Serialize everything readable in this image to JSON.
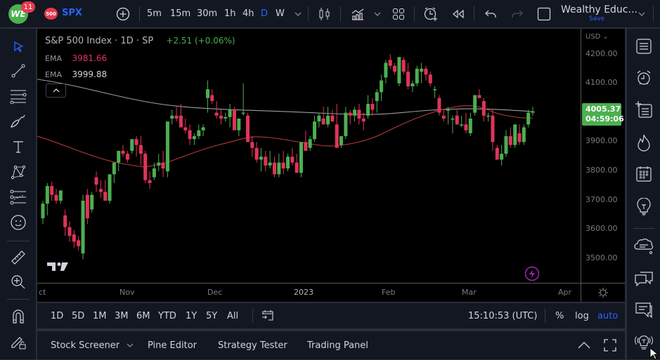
{
  "topbar": {
    "logo_text": "WE",
    "notification_count": "11",
    "symbol_badge": "500",
    "symbol": "SPX",
    "intervals": [
      "5m",
      "15m",
      "30m",
      "1h",
      "4h",
      "D",
      "W"
    ],
    "active_interval": "D",
    "layout_name": "Wealthy Educ...",
    "layout_save": "Save"
  },
  "legend": {
    "title": "S&P 500 Index · 1D · SP",
    "change": "+2.51 (+0.06%)",
    "ema1_label": "EMA",
    "ema1_value": "3981.66",
    "ema2_label": "EMA",
    "ema2_value": "3999.88"
  },
  "price_axis": {
    "currency": "USD",
    "labels": [
      "4200.00",
      "4100.00",
      "3900.00",
      "3800.00",
      "3700.00",
      "3600.00",
      "3500.00"
    ],
    "current_price": "4005.37",
    "countdown": "04:59:06"
  },
  "time_axis": {
    "labels": [
      "ct",
      "Nov",
      "Dec",
      "2023",
      "Feb",
      "Mar",
      "Apr"
    ]
  },
  "bottom_toolbar": {
    "ranges": [
      "1D",
      "5D",
      "1M",
      "3M",
      "6M",
      "YTD",
      "1Y",
      "5Y",
      "All"
    ],
    "clock": "15:10:53 (UTC)",
    "percent": "%",
    "log": "log",
    "auto": "auto"
  },
  "panel_tabs": {
    "stock_screener": "Stock Screener",
    "pine_editor": "Pine Editor",
    "strategy_tester": "Strategy Tester",
    "trading_panel": "Trading Panel"
  },
  "colors": {
    "up": "#4caf50",
    "down": "#e0345a",
    "ema_fast": "#b33a3a",
    "ema_slow": "#9e9e9e",
    "accent": "#2962ff"
  },
  "chart_data": {
    "type": "candlestick",
    "title": "S&P 500 Index · 1D · SP",
    "ylim": [
      3430,
      4250
    ],
    "y_ticks": [
      3500,
      3600,
      3700,
      3800,
      3900,
      4000,
      4100,
      4200
    ],
    "x_ticks": [
      "Nov",
      "Dec",
      "2023",
      "Feb",
      "Mar",
      "Apr"
    ],
    "candles": [
      [
        3640,
        3700,
        3620,
        3690
      ],
      [
        3690,
        3760,
        3650,
        3750
      ],
      [
        3750,
        3765,
        3700,
        3720
      ],
      [
        3720,
        3740,
        3690,
        3700
      ],
      [
        3700,
        3730,
        3690,
        3735
      ],
      [
        3650,
        3670,
        3580,
        3610
      ],
      [
        3610,
        3630,
        3560,
        3580
      ],
      [
        3585,
        3600,
        3540,
        3560
      ],
      [
        3565,
        3580,
        3530,
        3545
      ],
      [
        3520,
        3720,
        3500,
        3700
      ],
      [
        3720,
        3740,
        3620,
        3640
      ],
      [
        3670,
        3730,
        3660,
        3720
      ],
      [
        3780,
        3800,
        3730,
        3755
      ],
      [
        3740,
        3770,
        3710,
        3730
      ],
      [
        3730,
        3770,
        3710,
        3700
      ],
      [
        3700,
        3780,
        3690,
        3790
      ],
      [
        3790,
        3830,
        3760,
        3830
      ],
      [
        3830,
        3870,
        3800,
        3870
      ],
      [
        3870,
        3890,
        3850,
        3860
      ],
      [
        3860,
        3870,
        3830,
        3840
      ],
      [
        3870,
        3900,
        3860,
        3910
      ],
      [
        3910,
        3920,
        3850,
        3890
      ],
      [
        3890,
        3920,
        3820,
        3860
      ],
      [
        3860,
        3870,
        3760,
        3770
      ],
      [
        3770,
        3800,
        3740,
        3760
      ],
      [
        3780,
        3830,
        3770,
        3810
      ],
      [
        3820,
        3860,
        3800,
        3830
      ],
      [
        3830,
        3870,
        3780,
        3810
      ],
      [
        3800,
        3880,
        3780,
        3970
      ],
      [
        3980,
        4010,
        3960,
        3990
      ],
      [
        3990,
        4020,
        3970,
        3980
      ],
      [
        3990,
        4030,
        3970,
        3950
      ],
      [
        3950,
        3980,
        3930,
        3940
      ],
      [
        3940,
        3960,
        3890,
        3910
      ],
      [
        3910,
        3930,
        3890,
        3920
      ],
      [
        3920,
        3960,
        3910,
        3940
      ],
      [
        3940,
        3960,
        3920,
        3950
      ],
      [
        4050,
        4110,
        4000,
        4080
      ],
      [
        4060,
        4080,
        4030,
        4040
      ],
      [
        4000,
        4040,
        3980,
        3990
      ],
      [
        3990,
        4010,
        3960,
        3980
      ],
      [
        3980,
        4000,
        3970,
        3985
      ],
      [
        3985,
        4030,
        3950,
        4010
      ],
      [
        4010,
        4020,
        3950,
        3940
      ],
      [
        3940,
        3960,
        3920,
        3980
      ],
      [
        4000,
        4100,
        3990,
        4000
      ],
      [
        3990,
        4000,
        3900,
        3900
      ],
      [
        3900,
        3920,
        3850,
        3880
      ],
      [
        3880,
        3900,
        3830,
        3840
      ],
      [
        3840,
        3880,
        3800,
        3850
      ],
      [
        3850,
        3870,
        3800,
        3820
      ],
      [
        3820,
        3870,
        3810,
        3830
      ],
      [
        3830,
        3850,
        3780,
        3790
      ],
      [
        3790,
        3860,
        3780,
        3830
      ],
      [
        3830,
        3870,
        3790,
        3810
      ],
      [
        3810,
        3860,
        3800,
        3850
      ],
      [
        3850,
        3880,
        3820,
        3830
      ],
      [
        3830,
        3860,
        3800,
        3795
      ],
      [
        3795,
        3900,
        3780,
        3900
      ],
      [
        3900,
        3940,
        3880,
        3870
      ],
      [
        3880,
        3920,
        3870,
        3910
      ],
      [
        3910,
        3990,
        3900,
        3970
      ],
      [
        3970,
        4000,
        3950,
        3990
      ],
      [
        3980,
        4020,
        3960,
        3960
      ],
      [
        3960,
        4020,
        3950,
        3990
      ],
      [
        3990,
        4010,
        3970,
        3970
      ],
      [
        3960,
        4030,
        3950,
        3880
      ],
      [
        3890,
        3910,
        3880,
        3920
      ],
      [
        3920,
        4020,
        3910,
        4000
      ],
      [
        4000,
        4010,
        3960,
        3990
      ],
      [
        3990,
        4020,
        3970,
        4010
      ],
      [
        4010,
        4030,
        3960,
        3980
      ],
      [
        3980,
        4000,
        3940,
        3970
      ],
      [
        3990,
        4060,
        3980,
        4030
      ],
      [
        4030,
        4050,
        3990,
        4010
      ],
      [
        4040,
        4080,
        4000,
        4070
      ],
      [
        4070,
        4130,
        4040,
        4110
      ],
      [
        4120,
        4180,
        4100,
        4170
      ],
      [
        4180,
        4200,
        4150,
        4160
      ],
      [
        4160,
        4170,
        4130,
        4140
      ],
      [
        4100,
        4180,
        4090,
        4190
      ],
      [
        4180,
        4190,
        4130,
        4140
      ],
      [
        4140,
        4170,
        4080,
        4090
      ],
      [
        4090,
        4110,
        4070,
        4100
      ],
      [
        4100,
        4160,
        4090,
        4150
      ],
      [
        4140,
        4170,
        4100,
        4150
      ],
      [
        4150,
        4160,
        4110,
        4130
      ],
      [
        4130,
        4140,
        4090,
        4100
      ],
      [
        4080,
        4090,
        4050,
        4080
      ],
      [
        4050,
        4060,
        3990,
        4000
      ],
      [
        3990,
        4010,
        3970,
        3980
      ],
      [
        4010,
        4020,
        3960,
        4010
      ],
      [
        3980,
        3990,
        3930,
        3980
      ],
      [
        3990,
        4010,
        3960,
        3960
      ],
      [
        3960,
        3990,
        3950,
        3960
      ],
      [
        3960,
        4000,
        3930,
        3940
      ],
      [
        3930,
        4000,
        3920,
        3980
      ],
      [
        4000,
        4060,
        3990,
        4060
      ],
      [
        4060,
        4080,
        4050,
        4050
      ],
      [
        4040,
        4050,
        3970,
        3990
      ],
      [
        3990,
        4000,
        3970,
        3990
      ],
      [
        3990,
        4010,
        3870,
        3900
      ],
      [
        3880,
        3890,
        3840,
        3840
      ],
      [
        3840,
        3890,
        3820,
        3860
      ],
      [
        3860,
        3940,
        3850,
        3920
      ],
      [
        3920,
        3950,
        3880,
        3890
      ],
      [
        3890,
        3960,
        3880,
        3960
      ],
      [
        3930,
        3960,
        3890,
        3900
      ],
      [
        3900,
        3960,
        3890,
        3950
      ],
      [
        3960,
        4010,
        3950,
        4000
      ],
      [
        4000,
        4020,
        3990,
        4005
      ]
    ],
    "ema_fast_label": "EMA 3981.66",
    "ema_slow_label": "EMA 3999.88",
    "last_price": 4005.37
  }
}
